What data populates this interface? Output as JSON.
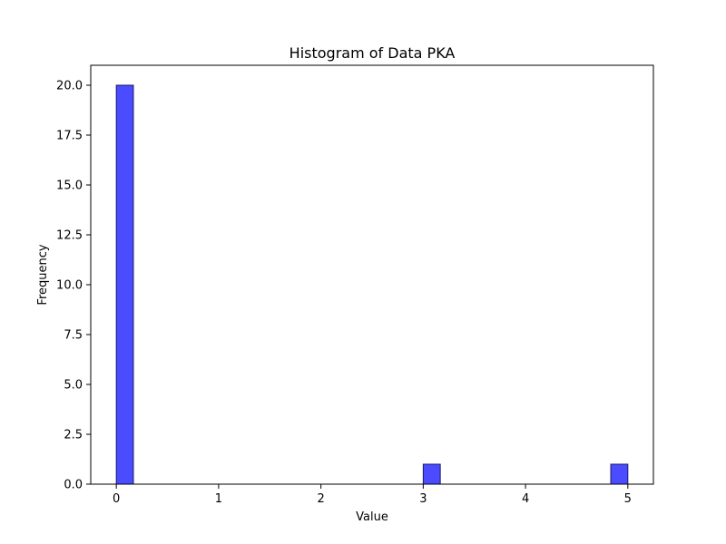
{
  "chart_data": {
    "type": "bar",
    "title": "Histogram of Data PKA",
    "xlabel": "Value",
    "ylabel": "Frequency",
    "xlim": [
      -0.25,
      5.25
    ],
    "ylim": [
      0,
      21
    ],
    "xticks": [
      0,
      1,
      2,
      3,
      4,
      5
    ],
    "xtick_labels": [
      "0",
      "1",
      "2",
      "3",
      "4",
      "5"
    ],
    "yticks": [
      0,
      2.5,
      5,
      7.5,
      10,
      12.5,
      15,
      17.5,
      20
    ],
    "ytick_labels": [
      "0.0",
      "2.5",
      "5.0",
      "7.5",
      "10.0",
      "12.5",
      "15.0",
      "17.5",
      "20.0"
    ],
    "bins": [
      {
        "start": 0.0,
        "end": 0.1667,
        "count": 20
      },
      {
        "start": 3.0,
        "end": 3.1667,
        "count": 1
      },
      {
        "start": 4.8333,
        "end": 5.0,
        "count": 1
      }
    ],
    "bar_color": "#4b4bff",
    "bar_edge_color": "#1a1a66",
    "grid": false
  }
}
